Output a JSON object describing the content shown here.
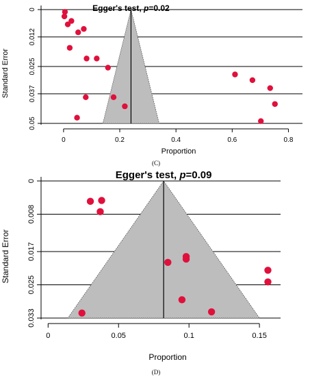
{
  "chart_data": [
    {
      "type": "scatter",
      "subtype": "funnel",
      "panel_label": "(C)",
      "title_prefix": "Egger's test, ",
      "title_p": "p",
      "title_value": "=0.02",
      "xlabel": "Proportion",
      "ylabel": "Standard Error",
      "xlim": [
        -0.08,
        0.85
      ],
      "ylim": [
        0,
        0.05
      ],
      "y_reversed": true,
      "x_ticks": [
        0,
        0.2,
        0.4,
        0.6,
        0.8
      ],
      "x_tick_labels": [
        "0",
        "0.2",
        "0.4",
        "0.6",
        "0.8"
      ],
      "y_ticks": [
        0,
        0.012,
        0.025,
        0.037,
        0.05
      ],
      "y_tick_labels": [
        "0",
        "0.012",
        "0.025",
        "0.037",
        "0.05"
      ],
      "gridlines": "horizontal",
      "pooled_estimate": 0.24,
      "funnel_base": [
        0.14,
        0.34
      ],
      "point_color": "#e0103c",
      "funnel_color": "#bdbdbd",
      "points": [
        {
          "x": 0.005,
          "y": 0.001
        },
        {
          "x": 0.003,
          "y": 0.003
        },
        {
          "x": 0.028,
          "y": 0.005
        },
        {
          "x": 0.015,
          "y": 0.0065
        },
        {
          "x": 0.072,
          "y": 0.0085
        },
        {
          "x": 0.052,
          "y": 0.01
        },
        {
          "x": 0.022,
          "y": 0.0168
        },
        {
          "x": 0.082,
          "y": 0.0215
        },
        {
          "x": 0.118,
          "y": 0.0215
        },
        {
          "x": 0.158,
          "y": 0.0255
        },
        {
          "x": 0.61,
          "y": 0.0285
        },
        {
          "x": 0.672,
          "y": 0.031
        },
        {
          "x": 0.735,
          "y": 0.0345
        },
        {
          "x": 0.079,
          "y": 0.0385
        },
        {
          "x": 0.178,
          "y": 0.0385
        },
        {
          "x": 0.218,
          "y": 0.0425
        },
        {
          "x": 0.752,
          "y": 0.0415
        },
        {
          "x": 0.048,
          "y": 0.0475
        },
        {
          "x": 0.702,
          "y": 0.049
        }
      ]
    },
    {
      "type": "scatter",
      "subtype": "funnel",
      "panel_label": "(D)",
      "title_prefix": "Egger's test, ",
      "title_p": "p",
      "title_value": "=0.09",
      "xlabel": "Proportion",
      "ylabel": "Standard Error",
      "xlim": [
        -0.005,
        0.165
      ],
      "ylim": [
        0,
        0.033
      ],
      "y_reversed": true,
      "x_ticks": [
        0,
        0.05,
        0.1,
        0.15
      ],
      "x_tick_labels": [
        "0",
        "0.05",
        "0.1",
        "0.15"
      ],
      "y_ticks": [
        0,
        0.008,
        0.017,
        0.025,
        0.033
      ],
      "y_tick_labels": [
        "0",
        "0.008",
        "0.017",
        "0.025",
        "0.033"
      ],
      "gridlines": "horizontal",
      "pooled_estimate": 0.082,
      "funnel_base": [
        0.014,
        0.15
      ],
      "point_color": "#e0103c",
      "funnel_color": "#bdbdbd",
      "points": [
        {
          "x": 0.03,
          "y": 0.0049
        },
        {
          "x": 0.038,
          "y": 0.0047
        },
        {
          "x": 0.037,
          "y": 0.0074
        },
        {
          "x": 0.085,
          "y": 0.0196
        },
        {
          "x": 0.098,
          "y": 0.0188
        },
        {
          "x": 0.098,
          "y": 0.0182
        },
        {
          "x": 0.156,
          "y": 0.0215
        },
        {
          "x": 0.156,
          "y": 0.0243
        },
        {
          "x": 0.095,
          "y": 0.0286
        },
        {
          "x": 0.116,
          "y": 0.0315
        },
        {
          "x": 0.024,
          "y": 0.0318
        }
      ]
    }
  ]
}
